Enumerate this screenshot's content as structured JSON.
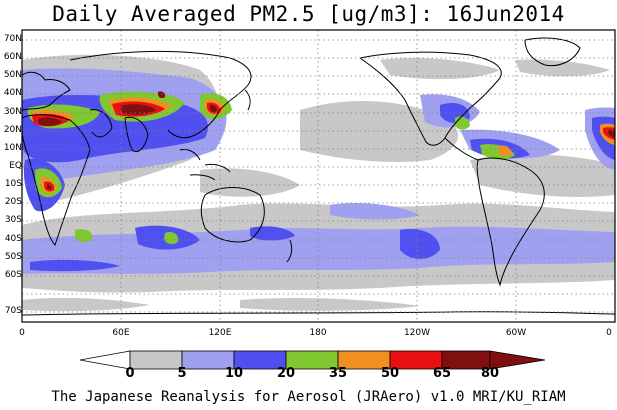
{
  "title": "Daily Averaged PM2.5 [ug/m3]: 16Jun2014",
  "lat_labels": [
    "70N",
    "60N",
    "50N",
    "40N",
    "30N",
    "20N",
    "10N",
    "EQ",
    "10S",
    "20S",
    "30S",
    "40S",
    "50S",
    "60S",
    "70S"
  ],
  "lon_labels": [
    "0",
    "60E",
    "120E",
    "180",
    "120W",
    "60W",
    "0"
  ],
  "colorbar": {
    "levels": [
      "0",
      "5",
      "10",
      "20",
      "35",
      "50",
      "65",
      "80"
    ],
    "colors": [
      "#ffffff",
      "#c8c8c8",
      "#a0a0f0",
      "#5050f0",
      "#80c830",
      "#f09020",
      "#e81010",
      "#801010"
    ]
  },
  "footer": "The Japanese Reanalysis for Aerosol (JRAero) v1.0 MRI/KU_RIAM"
}
